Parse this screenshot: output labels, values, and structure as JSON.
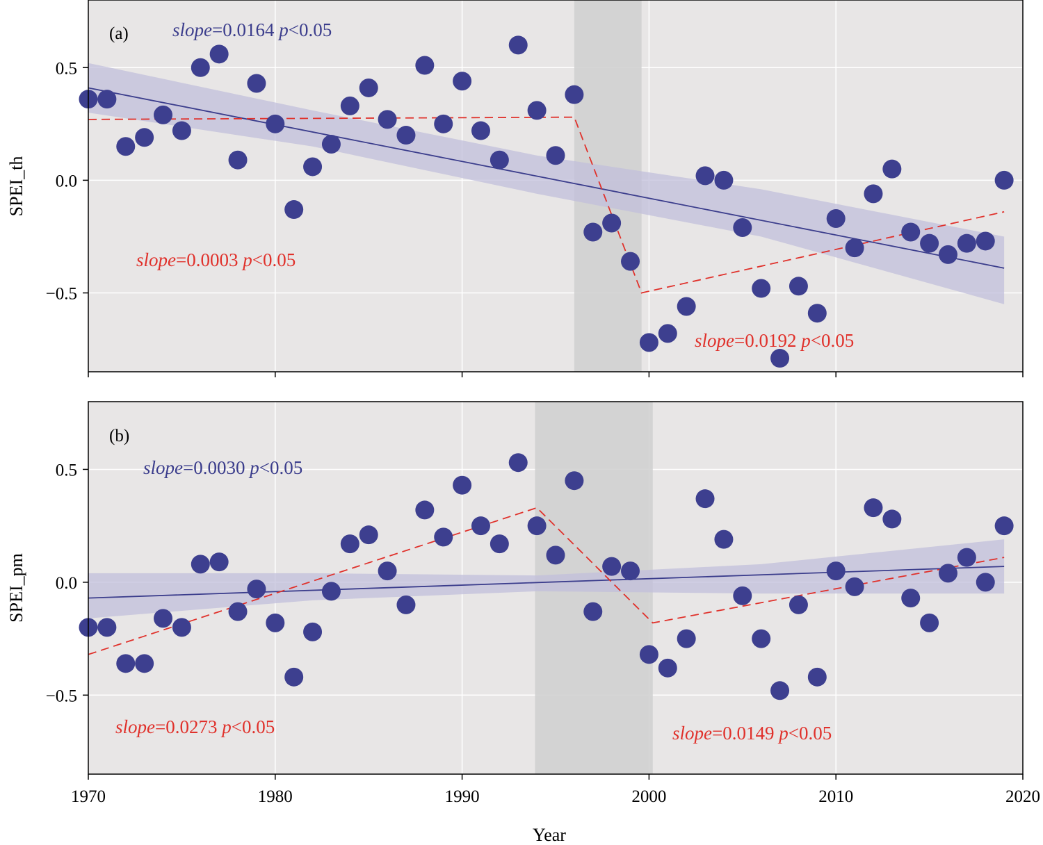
{
  "chart_data": [
    {
      "type": "scatter",
      "panel_label": "(a)",
      "ylabel": "SPEI_th",
      "xlim": [
        1970,
        2020
      ],
      "ylim": [
        -0.85,
        0.8
      ],
      "yticks": [
        -0.5,
        0.0,
        0.5
      ],
      "ytick_labels": [
        "−0.5",
        "0.0",
        "0.5"
      ],
      "grid": true,
      "shaded_period": [
        1996,
        1999.6
      ],
      "points": {
        "x": [
          1970,
          1971,
          1972,
          1973,
          1974,
          1975,
          1976,
          1977,
          1978,
          1979,
          1980,
          1981,
          1982,
          1983,
          1984,
          1985,
          1986,
          1987,
          1988,
          1989,
          1990,
          1991,
          1992,
          1993,
          1994,
          1995,
          1996,
          1997,
          1998,
          1999,
          2000,
          2001,
          2002,
          2003,
          2004,
          2005,
          2006,
          2007,
          2008,
          2009,
          2010,
          2011,
          2012,
          2013,
          2014,
          2015,
          2016,
          2017,
          2018,
          2019
        ],
        "y": [
          0.36,
          0.36,
          0.15,
          0.19,
          0.29,
          0.22,
          0.5,
          0.56,
          0.09,
          0.43,
          0.25,
          -0.13,
          0.06,
          0.16,
          0.33,
          0.41,
          0.27,
          0.2,
          0.51,
          0.25,
          0.44,
          0.22,
          0.09,
          0.6,
          0.31,
          0.11,
          0.38,
          -0.23,
          -0.19,
          -0.36,
          -0.72,
          -0.68,
          -0.56,
          0.02,
          0.0,
          -0.21,
          -0.48,
          -0.79,
          -0.47,
          -0.59,
          -0.17,
          -0.3,
          -0.06,
          0.05,
          -0.23,
          -0.28,
          -0.33,
          -0.28,
          -0.27,
          0.0
        ]
      },
      "linear_trend": {
        "x": [
          1970,
          2019
        ],
        "y": [
          0.41,
          -0.39
        ],
        "confidence_band": {
          "x": [
            1970,
            1982,
            1994,
            2006,
            2019
          ],
          "lower": [
            0.3,
            0.15,
            -0.06,
            -0.25,
            -0.55
          ],
          "upper": [
            0.52,
            0.31,
            0.11,
            -0.04,
            -0.25
          ]
        }
      },
      "piecewise_trend": {
        "x": [
          1970,
          1996,
          1999.6,
          2019
        ],
        "y": [
          0.27,
          0.28,
          -0.5,
          -0.14
        ]
      },
      "annotations": [
        {
          "italic": "slope",
          "text": "=0.0164 ",
          "italic2": "p",
          "text2": "<0.05",
          "color": "#3b3d8c"
        },
        {
          "italic": "slope",
          "text": "=0.0003 ",
          "italic2": "p",
          "text2": "<0.05",
          "color": "#e0312b"
        },
        {
          "italic": "slope",
          "text": "=0.0192 ",
          "italic2": "p",
          "text2": "<0.05",
          "color": "#e0312b"
        }
      ]
    },
    {
      "type": "scatter",
      "panel_label": "(b)",
      "ylabel": "SPEI_pm",
      "xlabel": "Year",
      "xlim": [
        1970,
        2020
      ],
      "ylim": [
        -0.85,
        0.8
      ],
      "xticks": [
        1970,
        1980,
        1990,
        2000,
        2010,
        2020
      ],
      "xtick_labels": [
        "1970",
        "1980",
        "1990",
        "2000",
        "2010",
        "2020"
      ],
      "yticks": [
        -0.5,
        0.0,
        0.5
      ],
      "ytick_labels": [
        "−0.5",
        "0.0",
        "0.5"
      ],
      "grid": true,
      "shaded_period": [
        1993.9,
        2000.2
      ],
      "points": {
        "x": [
          1970,
          1971,
          1972,
          1973,
          1974,
          1975,
          1976,
          1977,
          1978,
          1979,
          1980,
          1981,
          1982,
          1983,
          1984,
          1985,
          1986,
          1987,
          1988,
          1989,
          1990,
          1991,
          1992,
          1993,
          1994,
          1995,
          1996,
          1997,
          1998,
          1999,
          2000,
          2001,
          2002,
          2003,
          2004,
          2005,
          2006,
          2007,
          2008,
          2009,
          2010,
          2011,
          2012,
          2013,
          2014,
          2015,
          2016,
          2017,
          2018,
          2019
        ],
        "y": [
          -0.2,
          -0.2,
          -0.36,
          -0.36,
          -0.16,
          -0.2,
          0.08,
          0.09,
          -0.13,
          -0.03,
          -0.18,
          -0.42,
          -0.22,
          -0.04,
          0.17,
          0.21,
          0.05,
          -0.1,
          0.32,
          0.2,
          0.43,
          0.25,
          0.17,
          0.53,
          0.25,
          0.12,
          0.45,
          -0.13,
          0.07,
          0.05,
          -0.32,
          -0.38,
          -0.25,
          0.37,
          0.19,
          -0.06,
          -0.25,
          -0.48,
          -0.1,
          -0.42,
          0.05,
          -0.02,
          0.33,
          0.28,
          -0.07,
          -0.18,
          0.04,
          0.11,
          0.0,
          0.25
        ]
      },
      "linear_trend": {
        "x": [
          1970,
          2019
        ],
        "y": [
          -0.07,
          0.07
        ],
        "confidence_band": {
          "x": [
            1970,
            1982,
            1994,
            2006,
            2019
          ],
          "lower": [
            -0.16,
            -0.08,
            -0.04,
            -0.05,
            -0.05
          ],
          "upper": [
            0.04,
            0.04,
            0.03,
            0.08,
            0.19
          ]
        }
      },
      "piecewise_trend": {
        "x": [
          1970,
          1994,
          2000.2,
          2019
        ],
        "y": [
          -0.32,
          0.33,
          -0.18,
          0.11
        ]
      },
      "annotations": [
        {
          "italic": "slope",
          "text": "=0.0030 ",
          "italic2": "p",
          "text2": "<0.05",
          "color": "#3b3d8c"
        },
        {
          "italic": "slope",
          "text": "=0.0273 ",
          "italic2": "p",
          "text2": "<0.05",
          "color": "#e0312b"
        },
        {
          "italic": "slope",
          "text": "=0.0149 ",
          "italic2": "p",
          "text2": "<0.05",
          "color": "#e0312b"
        }
      ]
    }
  ],
  "colors": {
    "panel_bg": "#e8e6e6",
    "grid": "#ffffff",
    "shade": "#cfcfcf",
    "point": "#3d3f8f",
    "trend": "#3b3d8c",
    "band": "#c2bfdb",
    "piecewise": "#e0312b"
  }
}
